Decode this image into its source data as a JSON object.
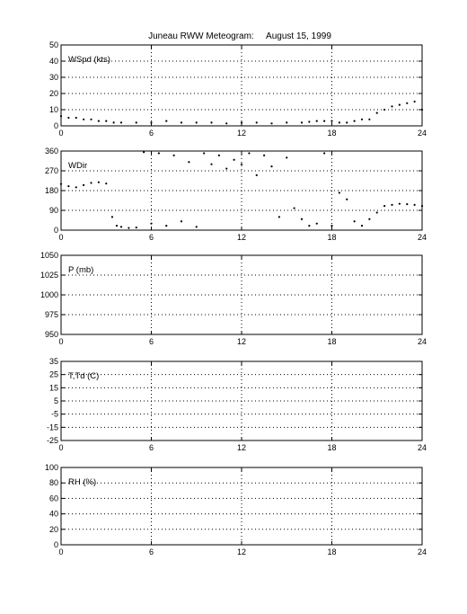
{
  "title": "Juneau RWW Meteogram:     August 15, 1999",
  "chart_data": [
    {
      "type": "scatter",
      "panel_label": "WSpd (kts)",
      "xlim": [
        0,
        24
      ],
      "ylim": [
        0,
        50
      ],
      "xticks": [
        0,
        6,
        12,
        18,
        24
      ],
      "yticks": [
        0,
        10,
        20,
        30,
        40,
        50
      ],
      "grid": true,
      "series": [
        {
          "x": [
            0,
            0.5,
            1,
            1.5,
            2,
            2.5,
            3,
            3.5,
            4,
            5,
            6,
            7,
            8,
            9,
            10,
            11,
            12,
            13,
            14,
            15,
            16,
            16.5,
            17,
            17.5,
            18,
            18.5,
            19,
            19.5,
            20,
            20.5,
            21,
            21.5,
            22,
            22.5,
            23,
            23.5,
            24
          ],
          "y": [
            6,
            5,
            5,
            4,
            4,
            3,
            3,
            2,
            2,
            2,
            2,
            3,
            2,
            2,
            2,
            1.5,
            2,
            2,
            1.5,
            2,
            2,
            2.5,
            3,
            3,
            3,
            2,
            2,
            3,
            4,
            4,
            8,
            10,
            12,
            13,
            14,
            15,
            10
          ]
        }
      ]
    },
    {
      "type": "scatter",
      "panel_label": "WDir",
      "xlim": [
        0,
        24
      ],
      "ylim": [
        0,
        360
      ],
      "xticks": [
        0,
        6,
        12,
        18,
        24
      ],
      "yticks": [
        0,
        90,
        180,
        270,
        360
      ],
      "grid": true,
      "series": [
        {
          "x": [
            0,
            0.5,
            1,
            1.5,
            2,
            2.5,
            3,
            3.4,
            3.7,
            4,
            4.5,
            5,
            5.5,
            6,
            6.5,
            7,
            7.5,
            8,
            8.5,
            9,
            9.5,
            10,
            10.5,
            11,
            11.5,
            12,
            12.5,
            13,
            13.5,
            14,
            14.5,
            15,
            15.5,
            16,
            16.5,
            17,
            17.5,
            18,
            18.5,
            19,
            19.5,
            20,
            20.5,
            21,
            21.5,
            22,
            22.5,
            23,
            23.5,
            24
          ],
          "y": [
            210,
            200,
            195,
            205,
            215,
            218,
            212,
            60,
            20,
            15,
            10,
            12,
            355,
            30,
            350,
            20,
            340,
            40,
            310,
            15,
            350,
            300,
            340,
            280,
            320,
            300,
            350,
            250,
            340,
            290,
            60,
            330,
            100,
            50,
            20,
            30,
            350,
            20,
            170,
            140,
            40,
            20,
            50,
            80,
            110,
            115,
            120,
            118,
            115,
            110
          ]
        }
      ]
    },
    {
      "type": "scatter",
      "panel_label": "P (mb)",
      "xlim": [
        0,
        24
      ],
      "ylim": [
        950,
        1050
      ],
      "xticks": [
        0,
        6,
        12,
        18,
        24
      ],
      "yticks": [
        950,
        975,
        1000,
        1025,
        1050
      ],
      "grid": true,
      "series": []
    },
    {
      "type": "scatter",
      "panel_label": "T,Td (C)",
      "xlim": [
        0,
        24
      ],
      "ylim": [
        -25,
        35
      ],
      "xticks": [
        0,
        6,
        12,
        18,
        24
      ],
      "yticks": [
        -25,
        -15,
        -5,
        5,
        15,
        25,
        35
      ],
      "grid": true,
      "series": []
    },
    {
      "type": "scatter",
      "panel_label": "RH (%)",
      "xlim": [
        0,
        24
      ],
      "ylim": [
        0,
        100
      ],
      "xticks": [
        0,
        6,
        12,
        18,
        24
      ],
      "yticks": [
        0,
        20,
        40,
        60,
        80,
        100
      ],
      "grid": true,
      "series": []
    }
  ]
}
